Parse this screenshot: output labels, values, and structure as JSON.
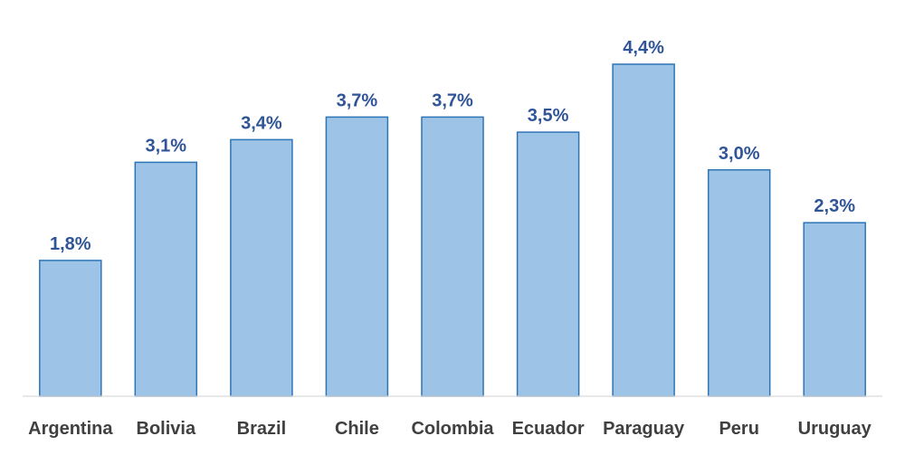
{
  "chart_data": {
    "type": "bar",
    "title": "",
    "xlabel": "",
    "ylabel": "",
    "categories": [
      "Argentina",
      "Bolivia",
      "Brazil",
      "Chile",
      "Colombia",
      "Ecuador",
      "Paraguay",
      "Peru",
      "Uruguay"
    ],
    "values": [
      1.8,
      3.1,
      3.4,
      3.7,
      3.7,
      3.5,
      4.4,
      3.0,
      2.3
    ],
    "data_labels": [
      "1,8%",
      "3,1%",
      "3,4%",
      "3,7%",
      "3,7%",
      "3,5%",
      "4,4%",
      "3,0%",
      "2,3%"
    ],
    "ylim": [
      0,
      4.4
    ],
    "grid": false,
    "legend": "none",
    "colors": {
      "bar_fill": "#9dc3e6",
      "bar_stroke": "#2e75b6",
      "data_label": "#2f5597",
      "tick_label": "#404040",
      "axis": "#d9d9d9"
    }
  }
}
